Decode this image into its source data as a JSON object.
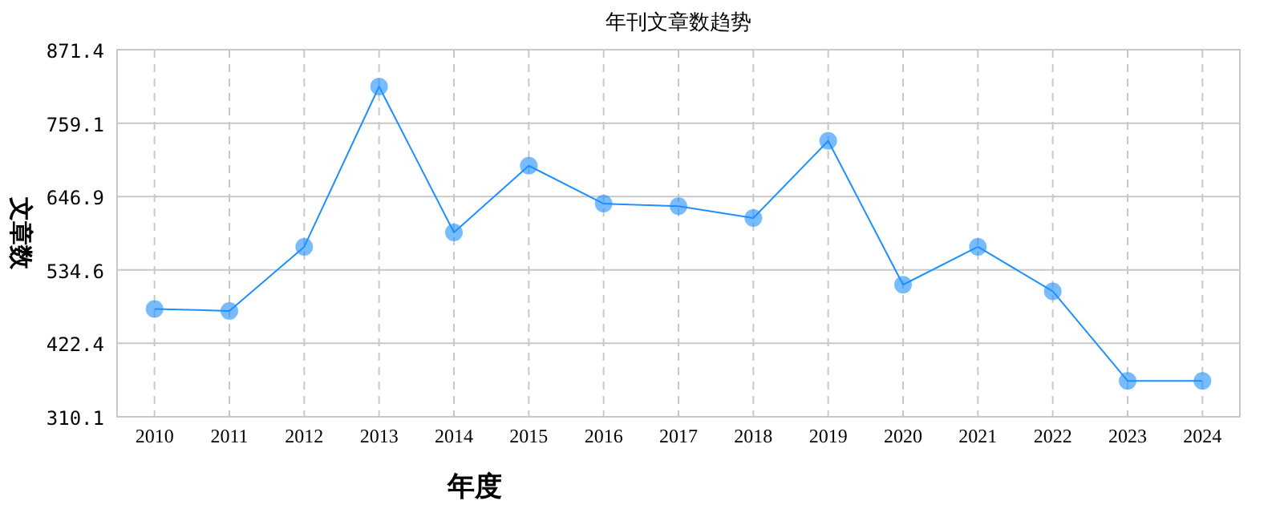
{
  "chart_data": {
    "type": "line",
    "title": "年刊文章数趋势",
    "xlabel": "年度",
    "ylabel": "文章数",
    "categories": [
      "2010",
      "2011",
      "2012",
      "2013",
      "2014",
      "2015",
      "2016",
      "2017",
      "2018",
      "2019",
      "2020",
      "2021",
      "2022",
      "2023",
      "2024"
    ],
    "series": [
      {
        "color": "#1e90ff",
        "values": [
          475,
          472,
          570,
          815,
          592,
          694,
          636,
          632,
          614,
          732,
          512,
          570,
          502,
          365,
          365
        ]
      }
    ],
    "ylim": [
      310.1,
      871.4
    ],
    "yticks": [
      310.1,
      422.4,
      534.6,
      646.9,
      759.1,
      871.4
    ],
    "grid": true,
    "marker": "circle",
    "line_style": "solid"
  }
}
